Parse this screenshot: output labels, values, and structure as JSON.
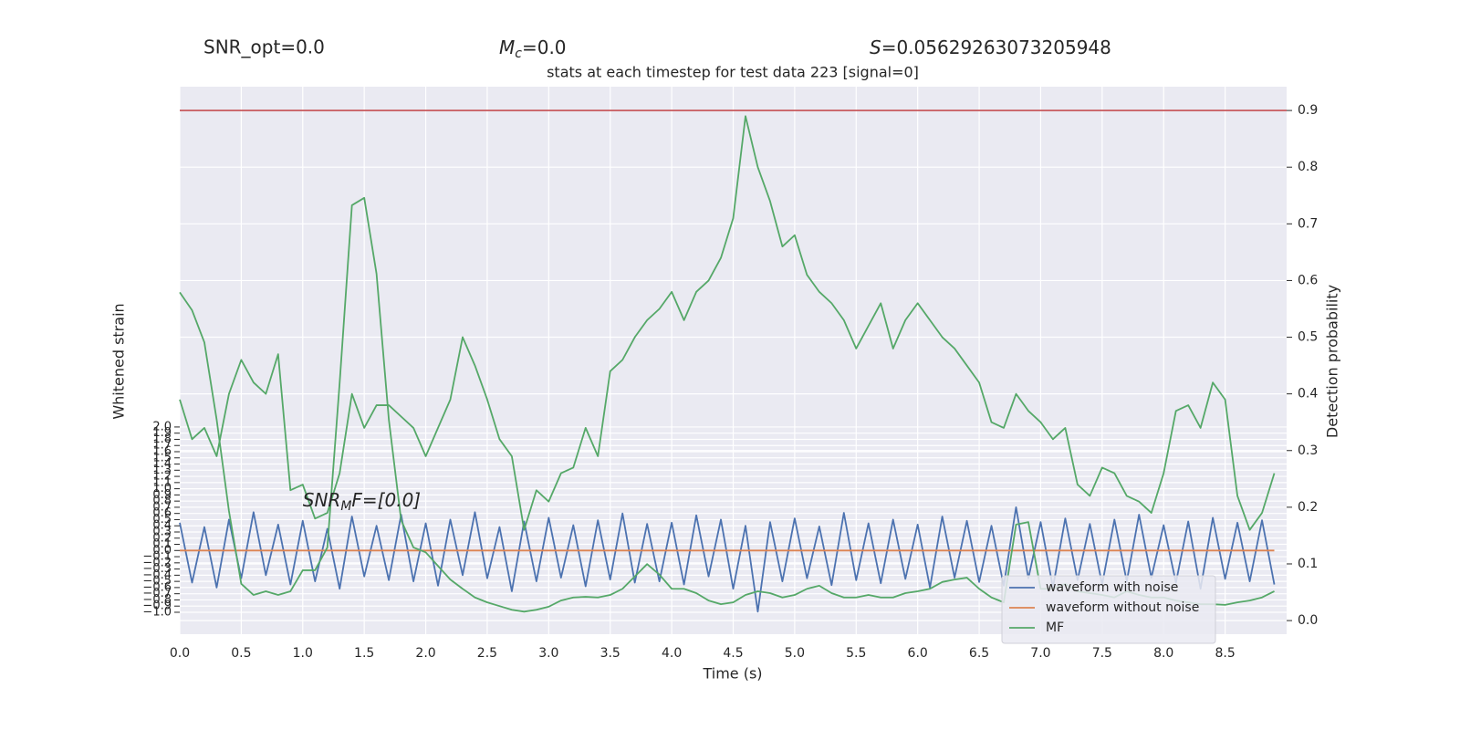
{
  "chart_data": {
    "type": "line",
    "title": "stats at each timestep for test data 223 [signal=0]",
    "header": [
      {
        "text": "SNR_opt=0.0"
      },
      {
        "symbol": "M",
        "subscript": "c",
        "text": "=0.0"
      },
      {
        "symbol": "S",
        "text": "=0.05629263073205948"
      }
    ],
    "annotation": {
      "symbol": "SNR",
      "subscript": "M",
      "text": "F=[0.0]",
      "x": 1.0,
      "y": 0.8
    },
    "xlabel": "Time (s)",
    "ylabel": "Whitened strain",
    "y2label": "Detection probability",
    "grid": true,
    "legend": "lower right",
    "xlim": [
      0,
      9.0
    ],
    "xticks": [
      {
        "value": 0,
        "label": "0.0"
      },
      0.5,
      {
        "value": 1,
        "label": "1.0"
      },
      1.5,
      {
        "value": 2,
        "label": "2.0"
      },
      2.5,
      {
        "value": 3,
        "label": "3.0"
      },
      3.5,
      {
        "value": 4,
        "label": "4.0"
      },
      4.5,
      {
        "value": 5,
        "label": "5.0"
      },
      5.5,
      {
        "value": 6,
        "label": "6.0"
      },
      6.5,
      {
        "value": 7,
        "label": "7.0"
      },
      7.5,
      {
        "value": 8,
        "label": "8.0"
      },
      8.5
    ],
    "ylim": [
      -1.355,
      7.51
    ],
    "yticks": [
      {
        "value": 2.0,
        "label": "2.0"
      },
      1.9,
      1.8,
      1.7,
      1.6,
      1.5,
      1.4,
      1.3,
      1.2,
      1.1,
      {
        "value": 1.0,
        "label": "1.0"
      },
      0.9,
      0.8,
      0.7,
      0.6,
      0.5,
      0.4,
      0.3,
      0.2,
      0.1,
      {
        "value": 0,
        "label": "0.0"
      },
      {
        "value": -0.1,
        "label": "−0.1"
      },
      {
        "value": -0.2,
        "label": "−0.2"
      },
      {
        "value": -0.3,
        "label": "−0.3"
      },
      {
        "value": -0.4,
        "label": "−0.4"
      },
      {
        "value": -0.5,
        "label": "−0.5"
      },
      {
        "value": -0.6,
        "label": "−0.6"
      },
      {
        "value": -0.7,
        "label": "−0.7"
      },
      {
        "value": -0.8,
        "label": "−0.8"
      },
      {
        "value": -0.9,
        "label": "−0.9"
      },
      {
        "value": -1.0,
        "label": "−1.0"
      }
    ],
    "y2lim": [
      -0.024,
      0.942
    ],
    "y2ticks": [
      {
        "value": 0,
        "label": "0.0"
      },
      0.1,
      0.2,
      0.3,
      0.4,
      0.5,
      0.6,
      0.7,
      0.8,
      0.9
    ],
    "threshold": {
      "value": 0.9,
      "color": "#c44e52",
      "axis": "y2"
    },
    "x": [
      0,
      0.1,
      0.2,
      0.3,
      0.4,
      0.5,
      0.6,
      0.7,
      0.8,
      0.9,
      1,
      1.1,
      1.2,
      1.3,
      1.4,
      1.5,
      1.6,
      1.7,
      1.8,
      1.9,
      2,
      2.1,
      2.2,
      2.3,
      2.4,
      2.5,
      2.6,
      2.7,
      2.8,
      2.9,
      3,
      3.1,
      3.2,
      3.3,
      3.4,
      3.5,
      3.6,
      3.7,
      3.8,
      3.9,
      4,
      4.1,
      4.2,
      4.3,
      4.4,
      4.5,
      4.6,
      4.7,
      4.8,
      4.9,
      5,
      5.1,
      5.2,
      5.3,
      5.4,
      5.5,
      5.6,
      5.7,
      5.8,
      5.9,
      6,
      6.1,
      6.2,
      6.3,
      6.4,
      6.5,
      6.6,
      6.7,
      6.8,
      6.9,
      7,
      7.1,
      7.2,
      7.3,
      7.4,
      7.5,
      7.6,
      7.7,
      7.8,
      7.9,
      8,
      8.1,
      8.2,
      8.3,
      8.4,
      8.5,
      8.6,
      8.7,
      8.8,
      8.9
    ],
    "series": [
      {
        "name": "waveform with noise",
        "color": "#4c72b0",
        "values": [
          0.45,
          -0.52,
          0.38,
          -0.6,
          0.5,
          -0.45,
          0.62,
          -0.4,
          0.42,
          -0.55,
          0.48,
          -0.5,
          0.35,
          -0.62,
          0.55,
          -0.42,
          0.4,
          -0.48,
          0.58,
          -0.5,
          0.44,
          -0.57,
          0.5,
          -0.4,
          0.62,
          -0.45,
          0.38,
          -0.66,
          0.47,
          -0.5,
          0.53,
          -0.44,
          0.41,
          -0.58,
          0.49,
          -0.47,
          0.6,
          -0.52,
          0.43,
          -0.5,
          0.45,
          -0.55,
          0.57,
          -0.42,
          0.5,
          -0.62,
          0.4,
          -0.99,
          0.46,
          -0.5,
          0.52,
          -0.45,
          0.39,
          -0.56,
          0.61,
          -0.48,
          0.44,
          -0.53,
          0.5,
          -0.46,
          0.42,
          -0.6,
          0.55,
          -0.44,
          0.48,
          -0.51,
          0.4,
          -0.57,
          0.7,
          -0.45,
          0.46,
          -0.6,
          0.52,
          -0.48,
          0.43,
          -0.55,
          0.5,
          -0.5,
          0.58,
          -0.44,
          0.41,
          -0.52,
          0.47,
          -0.62,
          0.53,
          -0.46,
          0.45,
          -0.5,
          0.49,
          -0.55
        ]
      },
      {
        "name": "waveform without noise",
        "color": "#dd8452",
        "values": [
          0,
          0,
          0,
          0,
          0,
          0,
          0,
          0,
          0,
          0,
          0,
          0,
          0,
          0,
          0,
          0,
          0,
          0,
          0,
          0,
          0,
          0,
          0,
          0,
          0,
          0,
          0,
          0,
          0,
          0,
          0,
          0,
          0,
          0,
          0,
          0,
          0,
          0,
          0,
          0,
          0,
          0,
          0,
          0,
          0,
          0,
          0,
          0,
          0,
          0,
          0,
          0,
          0,
          0,
          0,
          0,
          0,
          0,
          0,
          0,
          0,
          0,
          0,
          0,
          0,
          0,
          0,
          0,
          0,
          0,
          0,
          0,
          0,
          0,
          0,
          0,
          0,
          0,
          0,
          0,
          0,
          0,
          0,
          0,
          0,
          0,
          0,
          0,
          0,
          0
        ]
      },
      {
        "name": "MF",
        "color": "#55a868",
        "values": [
          4.18,
          3.89,
          3.37,
          2.12,
          0.64,
          -0.54,
          -0.72,
          -0.66,
          -0.72,
          -0.66,
          -0.32,
          -0.32,
          0.05,
          2.71,
          5.59,
          5.71,
          4.48,
          2.12,
          0.49,
          0.05,
          -0.03,
          -0.25,
          -0.47,
          -0.62,
          -0.76,
          -0.84,
          -0.9,
          -0.96,
          -0.99,
          -0.96,
          -0.91,
          -0.81,
          -0.76,
          -0.75,
          -0.76,
          -0.72,
          -0.62,
          -0.42,
          -0.22,
          -0.39,
          -0.62,
          -0.62,
          -0.69,
          -0.81,
          -0.87,
          -0.84,
          -0.72,
          -0.66,
          -0.69,
          -0.76,
          -0.72,
          -0.62,
          -0.57,
          -0.69,
          -0.76,
          -0.76,
          -0.72,
          -0.76,
          -0.76,
          -0.69,
          -0.66,
          -0.62,
          -0.51,
          -0.47,
          -0.44,
          -0.62,
          -0.76,
          -0.84,
          0.42,
          0.46,
          -0.62,
          -0.62,
          -0.54,
          -0.66,
          -0.69,
          -0.72,
          -0.76,
          -0.66,
          -0.72,
          -0.76,
          -0.76,
          -0.81,
          -0.84,
          -0.87,
          -0.87,
          -0.88,
          -0.84,
          -0.81,
          -0.76,
          -0.66
        ]
      },
      {
        "color": "#55a868",
        "axis": "y2",
        "values": [
          0.39,
          0.32,
          0.34,
          0.29,
          0.4,
          0.46,
          0.42,
          0.4,
          0.47,
          0.23,
          0.24,
          0.18,
          0.19,
          0.26,
          0.4,
          0.34,
          0.38,
          0.38,
          0.36,
          0.34,
          0.29,
          0.34,
          0.39,
          0.5,
          0.45,
          0.39,
          0.32,
          0.29,
          0.16,
          0.23,
          0.21,
          0.26,
          0.27,
          0.34,
          0.29,
          0.44,
          0.46,
          0.5,
          0.53,
          0.55,
          0.58,
          0.53,
          0.58,
          0.6,
          0.64,
          0.71,
          0.89,
          0.8,
          0.74,
          0.66,
          0.68,
          0.61,
          0.58,
          0.56,
          0.53,
          0.48,
          0.52,
          0.56,
          0.48,
          0.53,
          0.56,
          0.53,
          0.5,
          0.48,
          0.45,
          0.42,
          0.35,
          0.34,
          0.4,
          0.37,
          0.35,
          0.32,
          0.34,
          0.24,
          0.22,
          0.27,
          0.26,
          0.22,
          0.21,
          0.19,
          0.26,
          0.37,
          0.38,
          0.34,
          0.42,
          0.39,
          0.22,
          0.16,
          0.19,
          0.26
        ]
      }
    ]
  }
}
